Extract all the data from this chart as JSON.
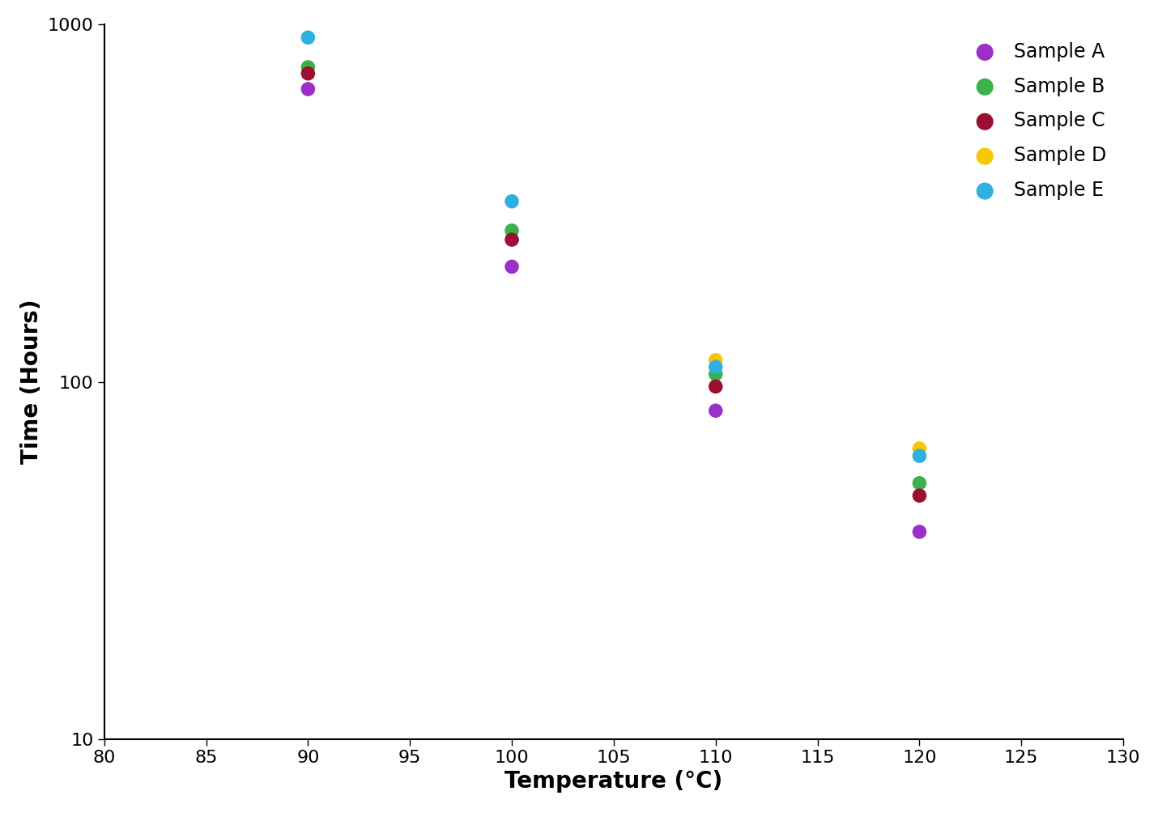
{
  "series": {
    "Sample A": {
      "color": "#9B30C8",
      "x": [
        90,
        100,
        110,
        120
      ],
      "y": [
        660,
        210,
        83,
        38
      ]
    },
    "Sample B": {
      "color": "#3CB04A",
      "x": [
        90,
        100,
        110,
        120
      ],
      "y": [
        760,
        265,
        105,
        52
      ]
    },
    "Sample C": {
      "color": "#9B1030",
      "x": [
        90,
        100,
        110,
        120
      ],
      "y": [
        730,
        250,
        97,
        48
      ]
    },
    "Sample D": {
      "color": "#F5C800",
      "x": [
        110,
        120
      ],
      "y": [
        115,
        65
      ]
    },
    "Sample E": {
      "color": "#2EB0E0",
      "x": [
        90,
        100,
        110,
        120
      ],
      "y": [
        920,
        320,
        110,
        62
      ]
    }
  },
  "xlabel": "Temperature (°C)",
  "ylabel": "Time (Hours)",
  "xlim": [
    80,
    130
  ],
  "ylim": [
    10,
    1000
  ],
  "xticks": [
    80,
    85,
    90,
    95,
    100,
    105,
    110,
    115,
    120,
    125,
    130
  ],
  "yticks": [
    10,
    100,
    1000
  ],
  "ytick_labels": [
    "10",
    "100",
    "1000"
  ],
  "marker_size": 160,
  "legend_fontsize": 17,
  "axis_label_fontsize": 20,
  "tick_fontsize": 16
}
